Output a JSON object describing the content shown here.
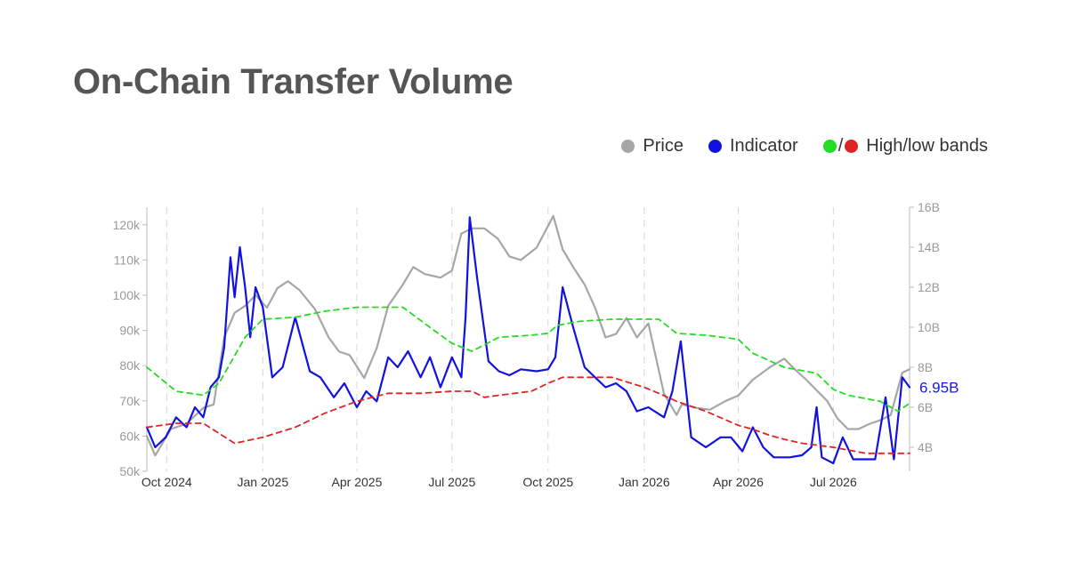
{
  "header": {
    "title": "On-Chain Transfer Volume"
  },
  "legend": {
    "price_label": "Price",
    "indicator_label": "Indicator",
    "separator": "/",
    "bands_label": "High/low bands"
  },
  "colors": {
    "price": "#a6a6a6",
    "indicator": "#1212e0",
    "high_band": "#22dd22",
    "low_band": "#e02424",
    "gridline": "#d6d6d6",
    "axis": "#bbbbbb"
  },
  "chart_data": {
    "type": "line",
    "title": "On-Chain Transfer Volume",
    "legend_position": "top-right",
    "grid": "vertical dashed at month ticks",
    "x_range": [
      "2024-09-12",
      "2026-09-12"
    ],
    "x_ticks": [
      {
        "date": "2024-10-01",
        "label": "Oct 2024"
      },
      {
        "date": "2025-01-01",
        "label": "Jan 2025"
      },
      {
        "date": "2025-04-01",
        "label": "Apr 2025"
      },
      {
        "date": "2025-07-01",
        "label": "Jul 2025"
      },
      {
        "date": "2025-10-01",
        "label": "Oct 2025"
      },
      {
        "date": "2026-01-01",
        "label": "Jan 2026"
      },
      {
        "date": "2026-04-01",
        "label": "Apr 2026"
      },
      {
        "date": "2026-07-01",
        "label": "Jul 2026"
      }
    ],
    "y_left": {
      "range": [
        50000,
        125000
      ],
      "ticks": [
        {
          "value": 50000,
          "label": "50k"
        },
        {
          "value": 60000,
          "label": "60k"
        },
        {
          "value": 70000,
          "label": "70k"
        },
        {
          "value": 80000,
          "label": "80k"
        },
        {
          "value": 90000,
          "label": "90k"
        },
        {
          "value": 100000,
          "label": "100k"
        },
        {
          "value": 110000,
          "label": "110k"
        },
        {
          "value": 120000,
          "label": "120k"
        }
      ]
    },
    "y_right": {
      "range": [
        2800000000,
        16000000000
      ],
      "ticks": [
        {
          "value": 4000000000,
          "label": "4B"
        },
        {
          "value": 6000000000,
          "label": "6B"
        },
        {
          "value": 8000000000,
          "label": "8B"
        },
        {
          "value": 10000000000,
          "label": "10B"
        },
        {
          "value": 12000000000,
          "label": "12B"
        },
        {
          "value": 14000000000,
          "label": "14B"
        },
        {
          "value": 16000000000,
          "label": "16B"
        }
      ]
    },
    "end_label": "6.95B",
    "series": [
      {
        "name": "Price",
        "axis": "left",
        "style": "solid",
        "x": [
          "2024-09-12",
          "2024-09-20",
          "2024-10-05",
          "2024-10-20",
          "2024-11-05",
          "2024-11-15",
          "2024-11-25",
          "2024-12-05",
          "2024-12-15",
          "2024-12-25",
          "2025-01-05",
          "2025-01-15",
          "2025-01-25",
          "2025-02-05",
          "2025-02-20",
          "2025-03-05",
          "2025-03-15",
          "2025-03-25",
          "2025-04-08",
          "2025-04-20",
          "2025-05-01",
          "2025-05-15",
          "2025-05-25",
          "2025-06-05",
          "2025-06-20",
          "2025-07-01",
          "2025-07-10",
          "2025-07-20",
          "2025-08-01",
          "2025-08-14",
          "2025-08-25",
          "2025-09-05",
          "2025-09-20",
          "2025-10-06",
          "2025-10-15",
          "2025-10-25",
          "2025-11-05",
          "2025-11-15",
          "2025-11-25",
          "2025-12-05",
          "2025-12-15",
          "2025-12-25",
          "2026-01-05",
          "2026-01-20",
          "2026-02-01",
          "2026-02-06",
          "2026-02-20",
          "2026-03-05",
          "2026-03-20",
          "2026-04-01",
          "2026-04-15",
          "2026-05-01",
          "2026-05-15",
          "2026-05-25",
          "2026-06-05",
          "2026-06-15",
          "2026-06-25",
          "2026-07-05",
          "2026-07-15",
          "2026-07-25",
          "2026-08-05",
          "2026-08-15",
          "2026-08-25",
          "2026-09-05",
          "2026-09-12"
        ],
        "y": [
          60000,
          54500,
          62000,
          63500,
          68000,
          69000,
          88000,
          95000,
          97000,
          100000,
          96500,
          102000,
          104000,
          101500,
          96000,
          88000,
          84000,
          83000,
          76500,
          85000,
          97000,
          103000,
          108000,
          106000,
          105000,
          107000,
          117500,
          119000,
          119000,
          116000,
          111000,
          110000,
          113500,
          122500,
          113000,
          108000,
          103000,
          96500,
          88000,
          89000,
          93500,
          88000,
          92000,
          72000,
          66000,
          69000,
          68000,
          67500,
          70000,
          71500,
          76000,
          79500,
          82000,
          79000,
          76000,
          73000,
          70000,
          65000,
          62000,
          62000,
          63500,
          64500,
          66000,
          78000,
          79000
        ]
      },
      {
        "name": "Indicator",
        "axis": "right",
        "style": "solid",
        "x": [
          "2024-09-12",
          "2024-09-20",
          "2024-09-30",
          "2024-10-10",
          "2024-10-20",
          "2024-10-28",
          "2024-11-05",
          "2024-11-12",
          "2024-11-20",
          "2024-11-25",
          "2024-12-01",
          "2024-12-05",
          "2024-12-10",
          "2024-12-15",
          "2024-12-20",
          "2024-12-25",
          "2025-01-01",
          "2025-01-10",
          "2025-01-20",
          "2025-02-01",
          "2025-02-15",
          "2025-02-25",
          "2025-03-10",
          "2025-03-20",
          "2025-04-01",
          "2025-04-10",
          "2025-04-20",
          "2025-05-01",
          "2025-05-10",
          "2025-05-20",
          "2025-06-01",
          "2025-06-10",
          "2025-06-20",
          "2025-07-01",
          "2025-07-10",
          "2025-07-14",
          "2025-07-18",
          "2025-07-25",
          "2025-08-05",
          "2025-08-15",
          "2025-08-25",
          "2025-09-05",
          "2025-09-20",
          "2025-10-01",
          "2025-10-08",
          "2025-10-15",
          "2025-10-25",
          "2025-11-05",
          "2025-11-15",
          "2025-11-25",
          "2025-12-05",
          "2025-12-15",
          "2025-12-25",
          "2026-01-05",
          "2026-01-20",
          "2026-01-28",
          "2026-02-05",
          "2026-02-15",
          "2026-03-01",
          "2026-03-15",
          "2026-03-25",
          "2026-04-05",
          "2026-04-15",
          "2026-04-25",
          "2026-05-05",
          "2026-05-20",
          "2026-06-01",
          "2026-06-10",
          "2026-06-15",
          "2026-06-20",
          "2026-07-01",
          "2026-07-10",
          "2026-07-20",
          "2026-08-01",
          "2026-08-10",
          "2026-08-20",
          "2026-08-28",
          "2026-09-05",
          "2026-09-12"
        ],
        "y": [
          5000000000,
          4000000000,
          4500000000,
          5500000000,
          5000000000,
          6000000000,
          5500000000,
          7000000000,
          7500000000,
          9000000000,
          13500000000,
          11500000000,
          14000000000,
          12000000000,
          9500000000,
          12000000000,
          11000000000,
          7500000000,
          8000000000,
          10500000000,
          7800000000,
          7500000000,
          6500000000,
          7200000000,
          6000000000,
          6800000000,
          6300000000,
          8500000000,
          8000000000,
          8800000000,
          7500000000,
          8500000000,
          7000000000,
          8500000000,
          7500000000,
          10500000000,
          15500000000,
          12500000000,
          8300000000,
          7800000000,
          7600000000,
          7900000000,
          7800000000,
          7900000000,
          8500000000,
          12000000000,
          10000000000,
          8000000000,
          7500000000,
          7000000000,
          7200000000,
          6800000000,
          5800000000,
          6000000000,
          5500000000,
          6800000000,
          9300000000,
          4500000000,
          4000000000,
          4500000000,
          4500000000,
          3800000000,
          5000000000,
          4000000000,
          3500000000,
          3500000000,
          3600000000,
          4000000000,
          6000000000,
          3500000000,
          3200000000,
          4500000000,
          3400000000,
          3400000000,
          3400000000,
          6500000000,
          3400000000,
          7500000000,
          7000000000
        ]
      },
      {
        "name": "High band",
        "axis": "right",
        "style": "dashed",
        "x": [
          "2024-09-12",
          "2024-10-10",
          "2024-11-05",
          "2024-11-20",
          "2024-12-15",
          "2025-01-01",
          "2025-02-01",
          "2025-03-01",
          "2025-04-01",
          "2025-05-01",
          "2025-05-15",
          "2025-06-15",
          "2025-07-01",
          "2025-07-20",
          "2025-08-15",
          "2025-09-15",
          "2025-10-01",
          "2025-10-10",
          "2025-11-01",
          "2025-12-01",
          "2026-01-01",
          "2026-01-15",
          "2026-02-01",
          "2026-03-01",
          "2026-04-01",
          "2026-04-15",
          "2026-05-15",
          "2026-06-15",
          "2026-07-01",
          "2026-07-15",
          "2026-08-15",
          "2026-09-01",
          "2026-09-12"
        ],
        "y": [
          8000000000,
          6800000000,
          6600000000,
          7200000000,
          9500000000,
          10400000000,
          10500000000,
          10800000000,
          11000000000,
          11000000000,
          11000000000,
          9800000000,
          9200000000,
          8800000000,
          9500000000,
          9600000000,
          9700000000,
          10100000000,
          10300000000,
          10400000000,
          10400000000,
          10400000000,
          9700000000,
          9600000000,
          9400000000,
          8700000000,
          8000000000,
          7700000000,
          6900000000,
          6600000000,
          6300000000,
          5800000000,
          6200000000
        ]
      },
      {
        "name": "Low band",
        "axis": "right",
        "style": "dashed",
        "x": [
          "2024-09-12",
          "2024-10-10",
          "2024-11-05",
          "2024-11-20",
          "2024-12-05",
          "2025-01-01",
          "2025-02-01",
          "2025-03-01",
          "2025-04-01",
          "2025-05-01",
          "2025-06-01",
          "2025-07-01",
          "2025-07-20",
          "2025-08-01",
          "2025-08-15",
          "2025-09-15",
          "2025-10-01",
          "2025-10-15",
          "2025-11-01",
          "2025-12-01",
          "2026-01-01",
          "2026-01-15",
          "2026-02-01",
          "2026-03-01",
          "2026-04-01",
          "2026-04-15",
          "2026-05-01",
          "2026-05-15",
          "2026-06-01",
          "2026-07-01",
          "2026-08-01",
          "2026-09-01",
          "2026-09-12"
        ],
        "y": [
          5000000000,
          5200000000,
          5200000000,
          4700000000,
          4200000000,
          4500000000,
          5000000000,
          5700000000,
          6300000000,
          6700000000,
          6700000000,
          6800000000,
          6800000000,
          6500000000,
          6600000000,
          6800000000,
          7200000000,
          7500000000,
          7500000000,
          7500000000,
          7000000000,
          6700000000,
          6300000000,
          5800000000,
          5100000000,
          4900000000,
          4600000000,
          4400000000,
          4200000000,
          4000000000,
          3700000000,
          3700000000,
          3700000000
        ]
      }
    ]
  }
}
